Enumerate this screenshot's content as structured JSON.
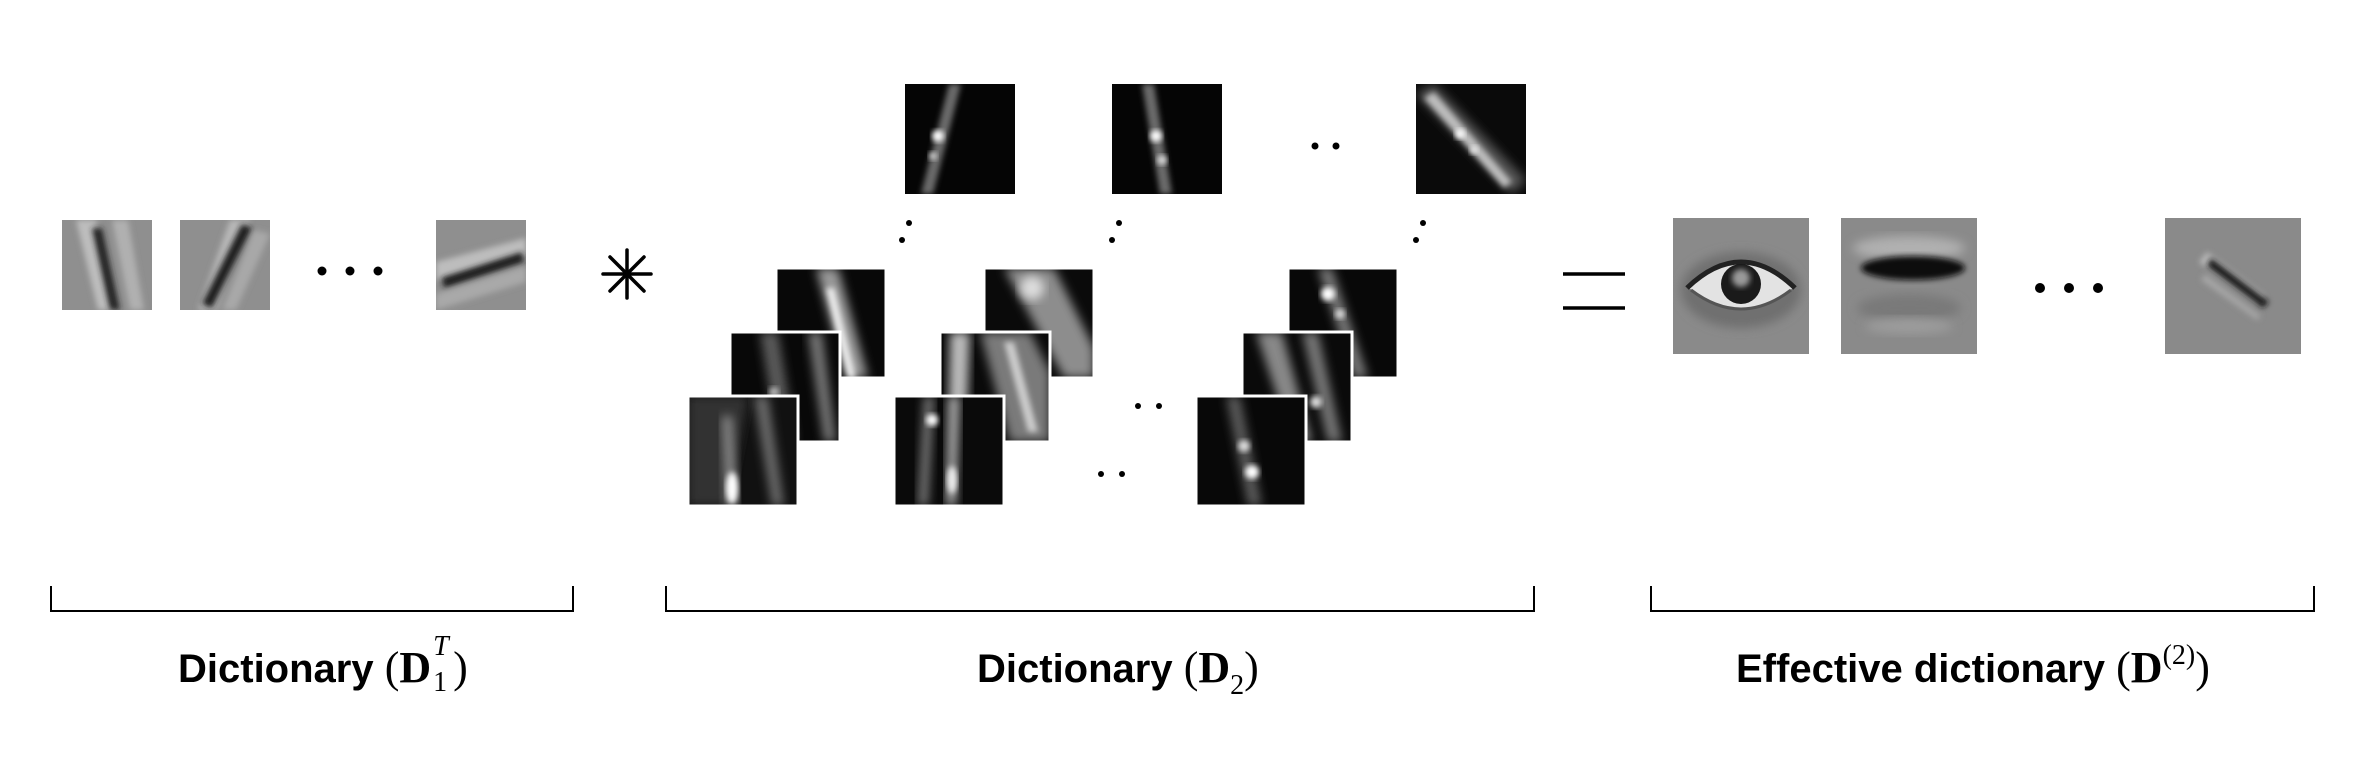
{
  "operators": {
    "convolve": "∗",
    "equals": "="
  },
  "groups": [
    {
      "id": "d1t",
      "label_text": "Dictionary",
      "symbol": "D",
      "sup": "T",
      "sub": "1"
    },
    {
      "id": "d2",
      "label_text": "Dictionary",
      "symbol": "D",
      "sub": "2"
    },
    {
      "id": "deff",
      "label_text": "Effective dictionary",
      "symbol": "D",
      "sup": "(2)"
    }
  ],
  "colors": {
    "background": "#ffffff",
    "ink": "#000000",
    "atom_gray": "#8a8a8a"
  }
}
